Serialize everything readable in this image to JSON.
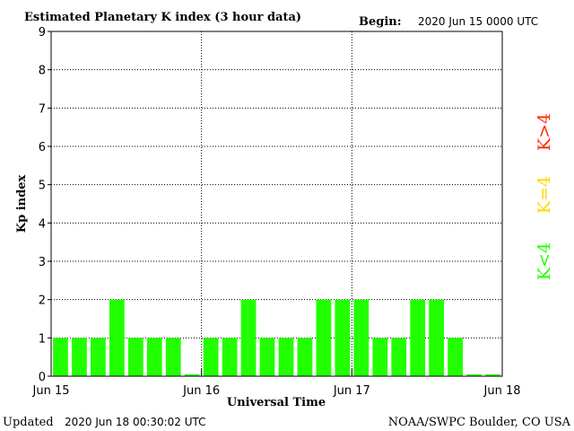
{
  "header": {
    "title": "Estimated Planetary K index (3 hour data)",
    "begin_label": "Begin:",
    "begin_value": "2020 Jun 15 0000 UTC"
  },
  "footer": {
    "updated_label": "Updated",
    "updated_value": "2020 Jun 18 00:30:02 UTC",
    "credit": "NOAA/SWPC Boulder, CO USA"
  },
  "legend": [
    {
      "label": "K>4",
      "color": "#ff2a00"
    },
    {
      "label": "K=4",
      "color": "#ffd700"
    },
    {
      "label": "K<4",
      "color": "#22ff00"
    }
  ],
  "chart_data": {
    "type": "bar",
    "title": "Estimated Planetary K index (3 hour data)",
    "xlabel": "Universal Time",
    "ylabel": "Kp index",
    "ylim": [
      0,
      9
    ],
    "yticks": [
      "0",
      "1",
      "2",
      "3",
      "4",
      "5",
      "6",
      "7",
      "8",
      "9"
    ],
    "xticks": [
      "Jun 15",
      "Jun 16",
      "Jun 17",
      "Jun 18"
    ],
    "grid": true,
    "bar_color": "#22ff00",
    "values": [
      1,
      1,
      1,
      2,
      1,
      1,
      1,
      0.05,
      1,
      1,
      2,
      1,
      1,
      1,
      2,
      2,
      2,
      1,
      1,
      2,
      2,
      1,
      0.05,
      0.05
    ]
  }
}
